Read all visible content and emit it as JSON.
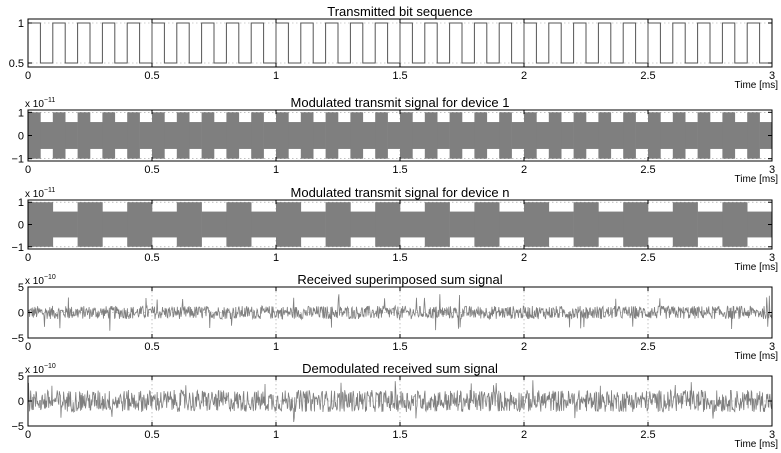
{
  "chart_data": [
    {
      "type": "line",
      "title": "Transmitted bit sequence",
      "xlabel": "Time [ms]",
      "xlim": [
        0,
        3
      ],
      "ylim": [
        0.45,
        1.05
      ],
      "xticks": [
        0,
        0.5,
        1,
        1.5,
        2,
        2.5,
        3
      ],
      "xtick_labels": [
        "0",
        "0.5",
        "1",
        "1.5",
        "2",
        "2.5",
        "3"
      ],
      "yticks": [
        0.5,
        1
      ],
      "ytick_labels": [
        "0.5",
        "1"
      ],
      "y_exponent": "",
      "grid": true,
      "series": [
        {
          "style": "square-wave",
          "levels": [
            0.5,
            1
          ],
          "bits": [
            1,
            0,
            1,
            0,
            1,
            0,
            1,
            0,
            1,
            0,
            1,
            0,
            1,
            0,
            1,
            0,
            1,
            0,
            1,
            0,
            1,
            0,
            1,
            0,
            1,
            0,
            1,
            0,
            1,
            0,
            1,
            0,
            1,
            0,
            1,
            0,
            1,
            0,
            1,
            0,
            1,
            0,
            1,
            0,
            1,
            0,
            1,
            0,
            1,
            0,
            1,
            0,
            1,
            0,
            1,
            0,
            1,
            0,
            1,
            0
          ],
          "color": "#555555"
        }
      ]
    },
    {
      "type": "line",
      "title": "Modulated transmit signal for device 1",
      "xlabel": "Time [ms]",
      "xlim": [
        0,
        3
      ],
      "ylim": [
        -1.1,
        1.1
      ],
      "xticks": [
        0,
        0.5,
        1,
        1.5,
        2,
        2.5,
        3
      ],
      "xtick_labels": [
        "0",
        "0.5",
        "1",
        "1.5",
        "2",
        "2.5",
        "3"
      ],
      "yticks": [
        -1,
        0,
        1
      ],
      "ytick_labels": [
        "−1",
        "0",
        "1"
      ],
      "y_exponent": "x 10",
      "y_exponent_power": "−11",
      "grid": true,
      "series": [
        {
          "style": "am-envelope",
          "amplitude_high": 1,
          "amplitude_low": 0.58,
          "segments": 60,
          "color": "#7f7f7f"
        }
      ]
    },
    {
      "type": "line",
      "title": "Modulated transmit signal for device n",
      "xlabel": "Time [ms]",
      "xlim": [
        0,
        3
      ],
      "ylim": [
        -1.1,
        1.1
      ],
      "xticks": [
        0,
        0.5,
        1,
        1.5,
        2,
        2.5,
        3
      ],
      "xtick_labels": [
        "0",
        "0.5",
        "1",
        "1.5",
        "2",
        "2.5",
        "3"
      ],
      "yticks": [
        -1,
        0,
        1
      ],
      "ytick_labels": [
        "−1",
        "0",
        "1"
      ],
      "y_exponent": "x 10",
      "y_exponent_power": "−11",
      "grid": true,
      "series": [
        {
          "style": "am-envelope",
          "amplitude_high": 1,
          "amplitude_low": 0.58,
          "segments": 30,
          "color": "#7f7f7f"
        }
      ]
    },
    {
      "type": "line",
      "title": "Received superimposed sum signal",
      "xlabel": "Time [ms]",
      "xlim": [
        0,
        3
      ],
      "ylim": [
        -5,
        5
      ],
      "xticks": [
        0,
        0.5,
        1,
        1.5,
        2,
        2.5,
        3
      ],
      "xtick_labels": [
        "0",
        "0.5",
        "1",
        "1.5",
        "2",
        "2.5",
        "3"
      ],
      "yticks": [
        -5,
        0,
        5
      ],
      "ytick_labels": [
        "−5",
        "0",
        "5"
      ],
      "y_exponent": "x 10",
      "y_exponent_power": "−10",
      "grid": true,
      "series": [
        {
          "style": "noise",
          "typical_amplitude": 1.3,
          "peak_amplitude": 3.6,
          "color": "#7f7f7f"
        }
      ]
    },
    {
      "type": "line",
      "title": "Demodulated received sum signal",
      "xlabel": "Time [ms]",
      "xlim": [
        0,
        3
      ],
      "ylim": [
        -5,
        5
      ],
      "xticks": [
        0,
        0.5,
        1,
        1.5,
        2,
        2.5,
        3
      ],
      "xtick_labels": [
        "0",
        "0.5",
        "1",
        "1.5",
        "2",
        "2.5",
        "3"
      ],
      "yticks": [
        -5,
        0,
        5
      ],
      "ytick_labels": [
        "−5",
        "0",
        "5"
      ],
      "y_exponent": "x 10",
      "y_exponent_power": "−10",
      "grid": true,
      "series": [
        {
          "style": "noise",
          "typical_amplitude": 2.2,
          "peak_amplitude": 4.2,
          "color": "#7f7f7f"
        }
      ]
    }
  ]
}
